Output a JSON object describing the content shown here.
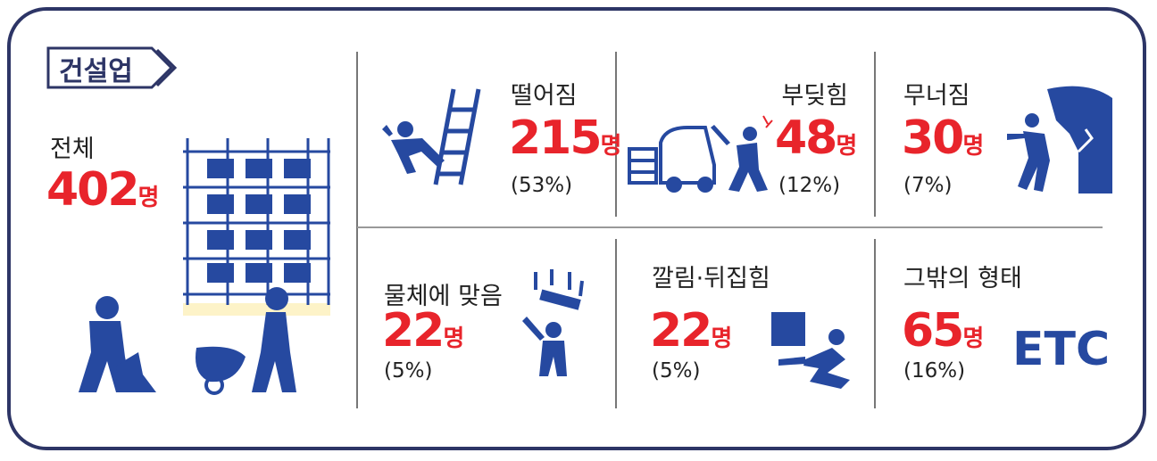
{
  "header": {
    "tag": "건설업"
  },
  "total": {
    "label": "전체",
    "count": 402,
    "unit": "명"
  },
  "items": [
    {
      "label": "떨어짐",
      "count": 215,
      "unit": "명",
      "share": "(53%)"
    },
    {
      "label": "부딪힘",
      "count": 48,
      "unit": "명",
      "share": "(12%)"
    },
    {
      "label": "무너짐",
      "count": 30,
      "unit": "명",
      "share": "(7%)"
    },
    {
      "label": "물체에 맞음",
      "count": 22,
      "unit": "명",
      "share": "(5%)"
    },
    {
      "label": "깔림·뒤집힘",
      "count": 22,
      "unit": "명",
      "share": "(5%)"
    },
    {
      "label": "그밖의 형태",
      "count": 65,
      "unit": "명",
      "share": "(16%)",
      "icon_text": "ETC"
    }
  ]
}
